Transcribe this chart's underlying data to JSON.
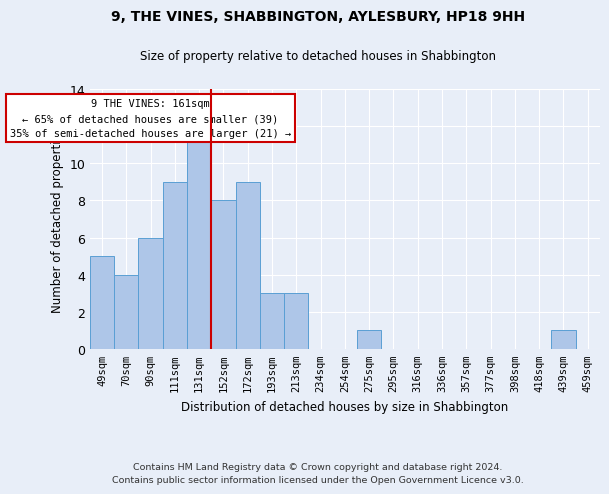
{
  "title": "9, THE VINES, SHABBINGTON, AYLESBURY, HP18 9HH",
  "subtitle": "Size of property relative to detached houses in Shabbington",
  "xlabel": "Distribution of detached houses by size in Shabbington",
  "ylabel": "Number of detached properties",
  "bar_color": "#aec6e8",
  "bar_edge_color": "#5a9fd4",
  "categories": [
    "49sqm",
    "70sqm",
    "90sqm",
    "111sqm",
    "131sqm",
    "152sqm",
    "172sqm",
    "193sqm",
    "213sqm",
    "234sqm",
    "254sqm",
    "275sqm",
    "295sqm",
    "316sqm",
    "336sqm",
    "357sqm",
    "377sqm",
    "398sqm",
    "418sqm",
    "439sqm",
    "459sqm"
  ],
  "values": [
    5,
    4,
    6,
    9,
    12,
    8,
    9,
    3,
    3,
    0,
    0,
    1,
    0,
    0,
    0,
    0,
    0,
    0,
    0,
    1,
    0
  ],
  "ylim": [
    0,
    14
  ],
  "yticks": [
    0,
    2,
    4,
    6,
    8,
    10,
    12,
    14
  ],
  "vline_x": 4.5,
  "vline_color": "#cc0000",
  "annotation_text": "9 THE VINES: 161sqm\n← 65% of detached houses are smaller (39)\n35% of semi-detached houses are larger (21) →",
  "annotation_box_color": "#ffffff",
  "annotation_box_edge": "#cc0000",
  "footer": "Contains HM Land Registry data © Crown copyright and database right 2024.\nContains public sector information licensed under the Open Government Licence v3.0.",
  "background_color": "#e8eef8",
  "grid_color": "#ffffff"
}
